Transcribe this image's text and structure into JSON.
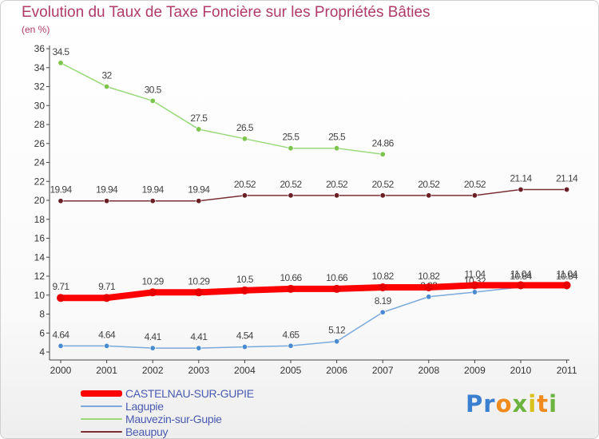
{
  "title": "Evolution du Taux de Taxe Foncière sur les Propriétés Bâties",
  "unit_label": "(en %)",
  "chart_data": {
    "type": "line",
    "title": "Evolution du Taux de Taxe Foncière sur les Propriétés Bâties",
    "ylabel": "(en %)",
    "xlabel": "",
    "x": [
      "2000",
      "2001",
      "2002",
      "2003",
      "2004",
      "2005",
      "2006",
      "2007",
      "2008",
      "2009",
      "2010",
      "2011"
    ],
    "ylim": [
      4,
      36
    ],
    "yticks": [
      4,
      6,
      8,
      10,
      12,
      14,
      16,
      18,
      20,
      22,
      24,
      26,
      28,
      30,
      32,
      34,
      36
    ],
    "grid": false,
    "legend": "bottom-left",
    "series": [
      {
        "name": "Beaupuy",
        "color": "#7a2e34",
        "marker": "#6a1f26",
        "width": 1.5,
        "values": [
          19.94,
          19.94,
          19.94,
          19.94,
          20.52,
          20.52,
          20.52,
          20.52,
          20.52,
          20.52,
          21.14,
          21.14
        ],
        "labels": [
          "19.94",
          "19.94",
          "19.94",
          "19.94",
          "20.52",
          "20.52",
          "20.52",
          "20.52",
          "20.52",
          "20.52",
          "21.14",
          "21.14"
        ]
      },
      {
        "name": "Mauvezin-sur-Gupie",
        "color": "#99d97a",
        "marker": "#7cc44c",
        "width": 1.5,
        "values": [
          34.5,
          32,
          30.5,
          27.5,
          26.5,
          25.5,
          25.5,
          24.86,
          null,
          null,
          null,
          null
        ],
        "labels": [
          "34.5",
          "32",
          "30.5",
          "27.5",
          "26.5",
          "25.5",
          "25.5",
          "24.86",
          "",
          "",
          "",
          ""
        ]
      },
      {
        "name": "Lagupie",
        "color": "#7aa9dd",
        "marker": "#4a8ad0",
        "width": 1.5,
        "values": [
          4.64,
          4.64,
          4.41,
          4.41,
          4.54,
          4.65,
          5.12,
          8.19,
          9.83,
          10.32,
          10.84,
          10.84
        ],
        "labels": [
          "4.64",
          "4.64",
          "4.41",
          "4.41",
          "4.54",
          "4.65",
          "5.12",
          "8.19",
          "9.83",
          "10.32",
          "10.84",
          "10.84"
        ]
      },
      {
        "name": "CASTELNAU-SUR-GUPIE",
        "color": "#ff0000",
        "marker": "#e80000",
        "width": 8,
        "values": [
          9.71,
          9.71,
          10.29,
          10.29,
          10.5,
          10.66,
          10.66,
          10.82,
          10.82,
          11.04,
          11.04,
          11.04
        ],
        "labels": [
          "9.71",
          "9.71",
          "10.29",
          "10.29",
          "10.5",
          "10.66",
          "10.66",
          "10.82",
          "10.82",
          "11.04",
          "11.04",
          "11.04"
        ]
      }
    ]
  },
  "legend": [
    {
      "name": "CASTELNAU-SUR-GUPIE",
      "color": "#ff0000",
      "thickness": 8
    },
    {
      "name": "Lagupie",
      "color": "#7aa9dd",
      "thickness": 2
    },
    {
      "name": "Mauvezin-sur-Gupie",
      "color": "#99d97a",
      "thickness": 2
    },
    {
      "name": "Beaupuy",
      "color": "#7a2e34",
      "thickness": 2
    }
  ],
  "logo": {
    "text": "Proxiti",
    "letter_colors": [
      "#3a7fd0",
      "#3a7fd0",
      "#f08a1c",
      "#6db33f",
      "#d8c21a",
      "#f08a1c",
      "#6db33f"
    ]
  }
}
